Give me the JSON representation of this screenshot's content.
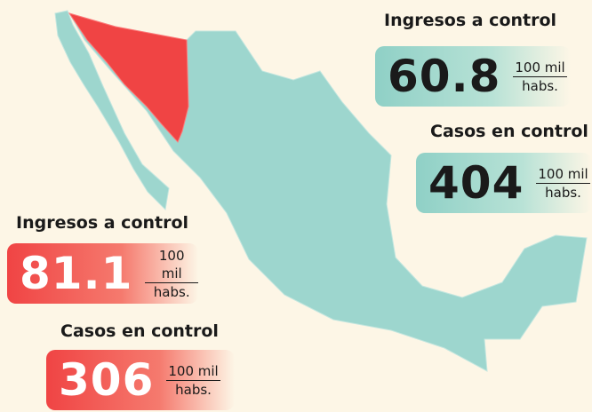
{
  "national": {
    "ingresos": {
      "label": "Ingresos a control",
      "value": 60.8,
      "unit_top": "100 mil",
      "unit_bottom": "habs."
    },
    "casos": {
      "label": "Casos en control",
      "value": 404,
      "unit_top": "100 mil",
      "unit_bottom": "habs."
    }
  },
  "state": {
    "ingresos": {
      "label": "Ingresos a control",
      "value": 81.1,
      "unit_top": "100 mil",
      "unit_bottom": "habs."
    },
    "casos": {
      "label": "Casos en control",
      "value": 306,
      "unit_top": "100 mil",
      "unit_bottom": "habs."
    }
  }
}
